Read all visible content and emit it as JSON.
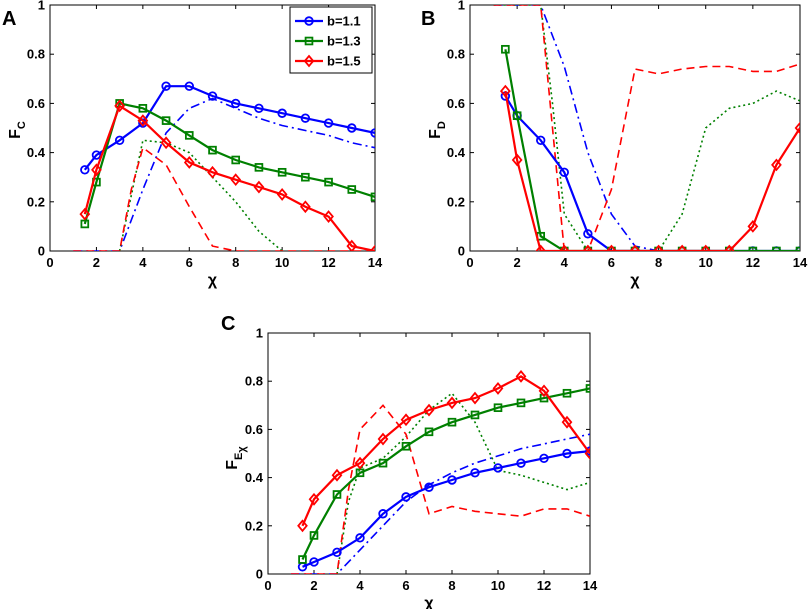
{
  "chart_data": [
    {
      "panel": "A",
      "type": "line",
      "ylabel": "F",
      "ylabel_sub": "C",
      "ylabel_subsub": "",
      "xlabel": "χ",
      "xlim": [
        0,
        14
      ],
      "ylim": [
        0,
        1
      ],
      "xticks": [
        "0",
        "2",
        "4",
        "6",
        "8",
        "10",
        "12",
        "14"
      ],
      "yticks": [
        "0",
        "0.2",
        "0.4",
        "0.6",
        "0.8",
        "1"
      ],
      "legend": {
        "position": "top-right",
        "entries": [
          "b=1.1",
          "b=1.3",
          "b=1.5"
        ]
      },
      "series": [
        {
          "name": "b=1.1",
          "color": "#0000ff",
          "style": "solid",
          "marker": "circle",
          "x": [
            1.5,
            2,
            3,
            4,
            5,
            6,
            7,
            8,
            9,
            10,
            11,
            12,
            13,
            14
          ],
          "y": [
            0.33,
            0.39,
            0.45,
            0.52,
            0.67,
            0.67,
            0.63,
            0.6,
            0.58,
            0.56,
            0.54,
            0.52,
            0.5,
            0.48
          ]
        },
        {
          "name": "b=1.3",
          "color": "#008000",
          "style": "solid",
          "marker": "square",
          "x": [
            1.5,
            2,
            3,
            4,
            5,
            6,
            7,
            8,
            9,
            10,
            11,
            12,
            13,
            14
          ],
          "y": [
            0.11,
            0.28,
            0.6,
            0.58,
            0.53,
            0.47,
            0.41,
            0.37,
            0.34,
            0.32,
            0.3,
            0.28,
            0.25,
            0.22
          ]
        },
        {
          "name": "b=1.5",
          "color": "#ff0000",
          "style": "solid",
          "marker": "diamond",
          "x": [
            1.5,
            2,
            3,
            4,
            5,
            6,
            7,
            8,
            9,
            10,
            11,
            12,
            13,
            14
          ],
          "y": [
            0.15,
            0.33,
            0.59,
            0.53,
            0.44,
            0.36,
            0.32,
            0.29,
            0.26,
            0.23,
            0.18,
            0.14,
            0.02,
            0.0
          ]
        },
        {
          "name": "",
          "color": "#0000ff",
          "style": "dashdot",
          "marker": "none",
          "x": [
            1,
            3,
            4,
            5,
            6,
            7,
            8,
            9,
            10,
            11,
            12,
            13,
            14
          ],
          "y": [
            0,
            0,
            0.25,
            0.48,
            0.58,
            0.62,
            0.58,
            0.54,
            0.51,
            0.49,
            0.47,
            0.44,
            0.42
          ]
        },
        {
          "name": "",
          "color": "#008000",
          "style": "dotted",
          "marker": "none",
          "x": [
            3,
            4,
            5,
            6,
            7,
            8,
            9,
            10
          ],
          "y": [
            0,
            0.45,
            0.44,
            0.4,
            0.3,
            0.2,
            0.08,
            0
          ]
        },
        {
          "name": "",
          "color": "#ff0000",
          "style": "dashed",
          "marker": "none",
          "x": [
            1,
            2,
            3,
            3.5,
            4,
            5,
            6,
            7,
            8,
            10,
            12,
            14
          ],
          "y": [
            0,
            0,
            0,
            0.25,
            0.42,
            0.35,
            0.18,
            0.02,
            0,
            0,
            0,
            0
          ]
        }
      ]
    },
    {
      "panel": "B",
      "type": "line",
      "ylabel": "F",
      "ylabel_sub": "D",
      "ylabel_subsub": "",
      "xlabel": "χ",
      "xlim": [
        0,
        14
      ],
      "ylim": [
        0,
        1
      ],
      "xticks": [
        "0",
        "2",
        "4",
        "6",
        "8",
        "10",
        "12",
        "14"
      ],
      "yticks": [
        "0",
        "0.2",
        "0.4",
        "0.6",
        "0.8",
        "1"
      ],
      "series": [
        {
          "name": "b=1.1",
          "color": "#0000ff",
          "style": "solid",
          "marker": "circle",
          "x": [
            1.5,
            2,
            3,
            4,
            5,
            6,
            7,
            8,
            9,
            10,
            11,
            12,
            13,
            14
          ],
          "y": [
            0.63,
            0.55,
            0.45,
            0.32,
            0.07,
            0,
            0,
            0,
            0,
            0,
            0,
            0,
            0,
            0
          ]
        },
        {
          "name": "b=1.3",
          "color": "#008000",
          "style": "solid",
          "marker": "square",
          "x": [
            1.5,
            2,
            3,
            4,
            5,
            6,
            7,
            8,
            9,
            10,
            11,
            12,
            13,
            14
          ],
          "y": [
            0.82,
            0.55,
            0.06,
            0,
            0,
            0,
            0,
            0,
            0,
            0,
            0,
            0,
            0,
            0
          ]
        },
        {
          "name": "b=1.5",
          "color": "#ff0000",
          "style": "solid",
          "marker": "diamond",
          "x": [
            1.5,
            2,
            3,
            4,
            5,
            6,
            7,
            8,
            9,
            10,
            11,
            12,
            13,
            14
          ],
          "y": [
            0.65,
            0.37,
            0,
            0,
            0,
            0,
            0,
            0,
            0,
            0,
            0,
            0.1,
            0.35,
            0.5
          ]
        },
        {
          "name": "",
          "color": "#0000ff",
          "style": "dashdot",
          "marker": "none",
          "x": [
            1,
            3,
            4,
            5,
            6,
            7,
            8,
            14
          ],
          "y": [
            1,
            1,
            0.75,
            0.4,
            0.15,
            0.02,
            0,
            0
          ]
        },
        {
          "name": "",
          "color": "#008000",
          "style": "dotted",
          "marker": "none",
          "x": [
            1,
            3,
            3.5,
            4,
            5,
            8,
            9,
            10,
            11,
            12,
            13,
            14
          ],
          "y": [
            1,
            1,
            0.6,
            0.15,
            0,
            0,
            0.15,
            0.5,
            0.58,
            0.6,
            0.65,
            0.61
          ]
        },
        {
          "name": "",
          "color": "#ff0000",
          "style": "dashed",
          "marker": "none",
          "x": [
            1,
            3,
            3.5,
            4,
            5,
            6,
            7,
            8,
            9,
            10,
            11,
            12,
            13,
            14
          ],
          "y": [
            1,
            1,
            0.5,
            0,
            0,
            0.25,
            0.74,
            0.72,
            0.74,
            0.75,
            0.75,
            0.73,
            0.73,
            0.76
          ]
        }
      ]
    },
    {
      "panel": "C",
      "type": "line",
      "ylabel": "F",
      "ylabel_sub": "E",
      "ylabel_subsub": "χ",
      "xlabel": "χ",
      "xlim": [
        0,
        14
      ],
      "ylim": [
        0,
        1
      ],
      "xticks": [
        "0",
        "2",
        "4",
        "6",
        "8",
        "10",
        "12",
        "14"
      ],
      "yticks": [
        "0",
        "0.2",
        "0.4",
        "0.6",
        "0.8",
        "1"
      ],
      "series": [
        {
          "name": "b=1.1",
          "color": "#0000ff",
          "style": "solid",
          "marker": "circle",
          "x": [
            1.5,
            2,
            3,
            4,
            5,
            6,
            7,
            8,
            9,
            10,
            11,
            12,
            13,
            14
          ],
          "y": [
            0.03,
            0.05,
            0.09,
            0.15,
            0.25,
            0.32,
            0.36,
            0.39,
            0.42,
            0.44,
            0.46,
            0.48,
            0.5,
            0.51
          ]
        },
        {
          "name": "b=1.3",
          "color": "#008000",
          "style": "solid",
          "marker": "square",
          "x": [
            1.5,
            2,
            3,
            4,
            5,
            6,
            7,
            8,
            9,
            10,
            11,
            12,
            13,
            14
          ],
          "y": [
            0.06,
            0.16,
            0.33,
            0.42,
            0.46,
            0.53,
            0.59,
            0.63,
            0.66,
            0.69,
            0.71,
            0.73,
            0.75,
            0.77
          ]
        },
        {
          "name": "b=1.5",
          "color": "#ff0000",
          "style": "solid",
          "marker": "diamond",
          "x": [
            1.5,
            2,
            3,
            4,
            5,
            6,
            7,
            8,
            9,
            10,
            11,
            12,
            13,
            14
          ],
          "y": [
            0.2,
            0.31,
            0.41,
            0.46,
            0.56,
            0.64,
            0.68,
            0.71,
            0.73,
            0.77,
            0.82,
            0.76,
            0.63,
            0.5
          ]
        },
        {
          "name": "",
          "color": "#0000ff",
          "style": "dashdot",
          "marker": "none",
          "x": [
            1,
            3,
            4,
            5,
            6,
            7,
            8,
            9,
            10,
            11,
            12,
            13,
            14
          ],
          "y": [
            0,
            0,
            0.1,
            0.2,
            0.3,
            0.37,
            0.42,
            0.46,
            0.49,
            0.52,
            0.54,
            0.56,
            0.58
          ]
        },
        {
          "name": "",
          "color": "#008000",
          "style": "dotted",
          "marker": "none",
          "x": [
            3,
            3.5,
            4,
            5,
            6,
            7,
            8,
            9,
            10,
            11,
            12,
            13,
            14
          ],
          "y": [
            0,
            0.3,
            0.44,
            0.48,
            0.57,
            0.68,
            0.75,
            0.63,
            0.43,
            0.41,
            0.38,
            0.35,
            0.38
          ]
        },
        {
          "name": "",
          "color": "#ff0000",
          "style": "dashed",
          "marker": "none",
          "x": [
            1,
            3,
            3.5,
            4,
            5,
            6,
            7,
            8,
            9,
            10,
            11,
            12,
            13,
            14
          ],
          "y": [
            0,
            0,
            0.35,
            0.6,
            0.7,
            0.58,
            0.25,
            0.28,
            0.26,
            0.25,
            0.24,
            0.27,
            0.27,
            0.24
          ]
        }
      ]
    }
  ]
}
